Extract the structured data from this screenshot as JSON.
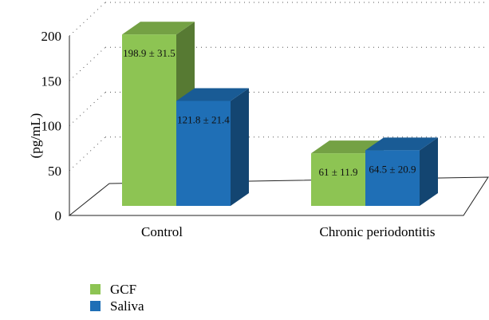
{
  "chart_data": {
    "type": "bar",
    "style": "3d-clustered-column",
    "categories": [
      "Control",
      "Chronic periodontitis"
    ],
    "series": [
      {
        "name": "GCF",
        "values": [
          198.9,
          61
        ],
        "labels": [
          "198.9 ± 31.5",
          "61 ± 11.9"
        ],
        "color": "#8dc453"
      },
      {
        "name": "Saliva",
        "values": [
          121.8,
          64.5
        ],
        "labels": [
          "121.8 ± 21.4",
          "64.5 ± 20.9"
        ],
        "color": "#1f6fb6"
      }
    ],
    "ylabel": "(pg/mL)",
    "xlabel": "",
    "ylim": [
      0,
      200
    ],
    "yticks": [
      0,
      50,
      100,
      150,
      200
    ],
    "grid": "dotted",
    "legend_position": "bottom-left"
  }
}
